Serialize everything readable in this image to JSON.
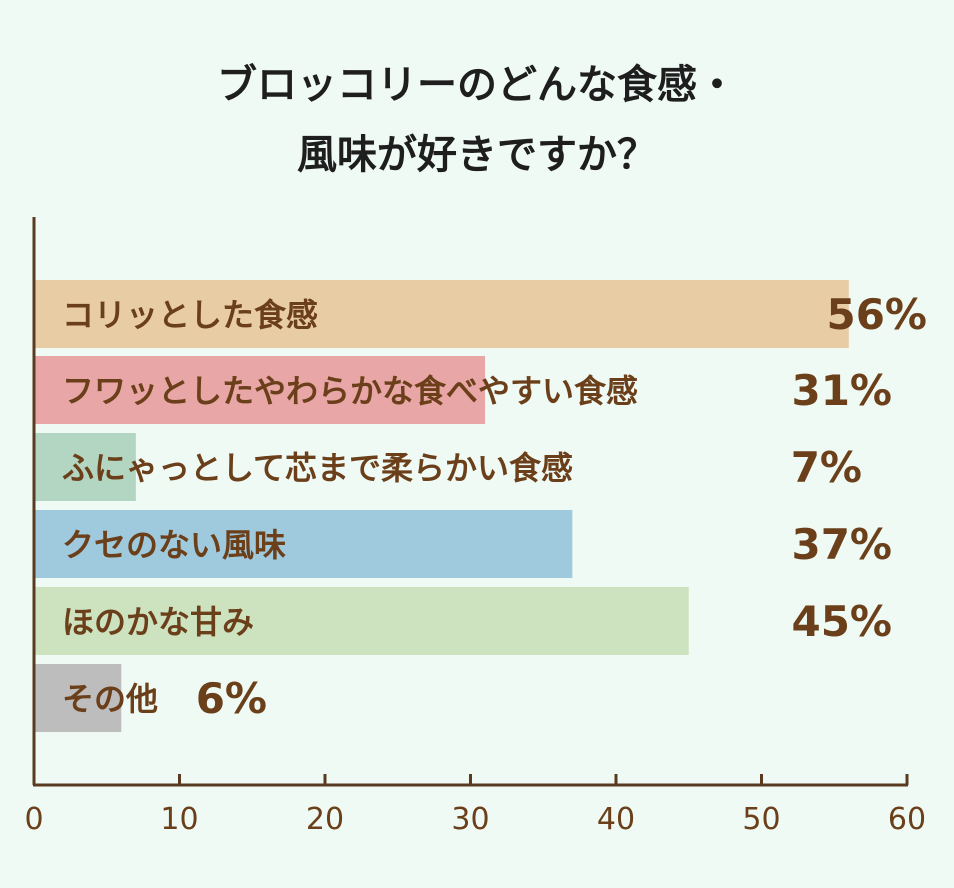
{
  "chart_data": {
    "type": "bar",
    "orientation": "horizontal",
    "title": [
      "ブロッコリーのどんな食感・",
      "風味が好きですか？"
    ],
    "categories": [
      "コリッとした食感",
      "フワッとしたやわらかな食べやすい食感",
      "ふにゃっとして芯まで柔らかい食感",
      "クセのない風味",
      "ほのかな甘み",
      "その他"
    ],
    "values": [
      56,
      31,
      7,
      37,
      45,
      6
    ],
    "value_labels": [
      "56%",
      "31%",
      "7%",
      "37%",
      "45%",
      "6%"
    ],
    "bar_colors": [
      "#e8cca4",
      "#e8a6a6",
      "#b3d6c2",
      "#9fcade",
      "#cde3bf",
      "#bdbdbd"
    ],
    "xlim": [
      0,
      60
    ],
    "xticks": [
      "0",
      "10",
      "20",
      "30",
      "40",
      "50",
      "60"
    ],
    "grid": false,
    "colors": {
      "axis": "#5a3a20",
      "label_text": "#6b3f1a",
      "title_text": "#1e1e1e",
      "background": "#eefaf3"
    }
  }
}
